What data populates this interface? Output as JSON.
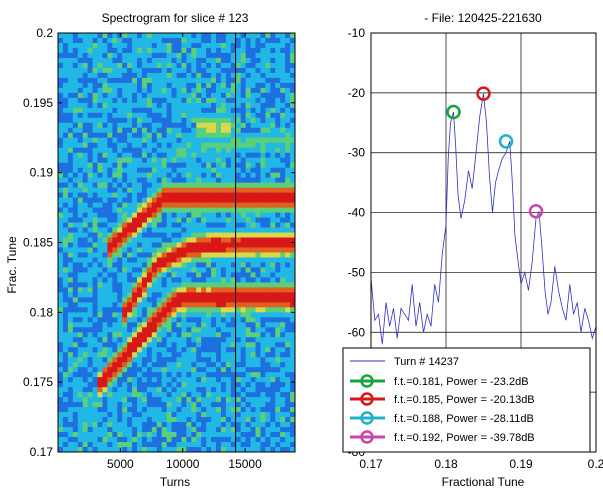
{
  "chart_data": [
    {
      "type": "heatmap",
      "title": "Spectrogram for slice # 123",
      "xlabel": "Turns",
      "ylabel": "Frac. Tune",
      "xlim": [
        0,
        19000
      ],
      "ylim": [
        0.17,
        0.2
      ],
      "x_ticks": [
        5000,
        10000,
        15000
      ],
      "y_ticks": [
        0.17,
        0.175,
        0.18,
        0.185,
        0.19,
        0.195,
        0.2
      ],
      "x_tick_labels": [
        "5000",
        "10000",
        "15000"
      ],
      "y_tick_labels": [
        "0.17",
        "0.175",
        "0.18",
        "0.185",
        "0.19",
        "0.195",
        "0.2"
      ],
      "cursor_turn": 14237,
      "colormap": [
        "#1a2fb5",
        "#1e6fe0",
        "#22b8e6",
        "#5ad07a",
        "#d8d84a",
        "#e06020",
        "#d81818"
      ],
      "ridges": [
        {
          "points": [
            [
              3000,
              0.1745
            ],
            [
              7000,
              0.1785
            ],
            [
              9000,
              0.1805
            ],
            [
              10000,
              0.181
            ],
            [
              19000,
              0.181
            ]
          ],
          "intensity": 1.0
        },
        {
          "points": [
            [
              5000,
              0.1795
            ],
            [
              8000,
              0.1835
            ],
            [
              10500,
              0.1845
            ],
            [
              12000,
              0.1848
            ],
            [
              19000,
              0.1849
            ]
          ],
          "intensity": 0.95
        },
        {
          "points": [
            [
              4000,
              0.1845
            ],
            [
              7000,
              0.187
            ],
            [
              8500,
              0.1882
            ],
            [
              19000,
              0.1882
            ]
          ],
          "intensity": 0.97
        },
        {
          "points": [
            [
              9000,
              0.1915
            ],
            [
              19000,
              0.1925
            ]
          ],
          "intensity": 0.45
        },
        {
          "points": [
            [
              11000,
              0.1933
            ],
            [
              14000,
              0.1932
            ]
          ],
          "intensity": 0.6
        }
      ]
    },
    {
      "type": "line",
      "title": "- File: 120425-221630",
      "xlabel": "Fractional Tune",
      "ylabel": "",
      "xlim": [
        0.17,
        0.2
      ],
      "ylim": [
        -80,
        -10
      ],
      "x_ticks": [
        0.17,
        0.18,
        0.19,
        0.2
      ],
      "y_ticks": [
        -80,
        -70,
        -60,
        -50,
        -40,
        -30,
        -20,
        -10
      ],
      "x_tick_labels": [
        "0.17",
        "0.18",
        "0.19",
        "0.2"
      ],
      "y_tick_labels": [
        "-80",
        "-70",
        "-60",
        "-50",
        "-40",
        "-30",
        "-20",
        "-10"
      ],
      "grid": true,
      "legend_position": "bottom",
      "series": [
        {
          "name": "Turn # 14237",
          "color": "#3030c0",
          "x": [
            0.17,
            0.1705,
            0.171,
            0.1715,
            0.172,
            0.1725,
            0.173,
            0.1735,
            0.174,
            0.1745,
            0.175,
            0.1755,
            0.176,
            0.1765,
            0.177,
            0.1775,
            0.178,
            0.1785,
            0.179,
            0.1795,
            0.18,
            0.1803,
            0.1806,
            0.181,
            0.1813,
            0.1816,
            0.182,
            0.1825,
            0.183,
            0.1835,
            0.184,
            0.1845,
            0.185,
            0.1854,
            0.1858,
            0.1862,
            0.1866,
            0.187,
            0.1875,
            0.188,
            0.1885,
            0.1888,
            0.1892,
            0.1896,
            0.19,
            0.1905,
            0.191,
            0.1915,
            0.192,
            0.1924,
            0.1928,
            0.1932,
            0.1936,
            0.194,
            0.1945,
            0.195,
            0.1955,
            0.196,
            0.1965,
            0.197,
            0.1975,
            0.198,
            0.1985,
            0.199,
            0.1995,
            0.2
          ],
          "values": [
            -51,
            -58,
            -57,
            -62,
            -55,
            -59,
            -56,
            -61,
            -56,
            -57,
            -58,
            -52,
            -59,
            -55,
            -60,
            -57,
            -59,
            -52,
            -55,
            -47,
            -42,
            -31,
            -25,
            -23.2,
            -29,
            -37,
            -41,
            -38,
            -33,
            -36,
            -30,
            -24,
            -20.1,
            -25,
            -34,
            -40,
            -35,
            -33,
            -31,
            -30,
            -28.1,
            -34,
            -44,
            -48,
            -52,
            -50,
            -53,
            -48,
            -41,
            -39.8,
            -46,
            -53,
            -57,
            -55,
            -49,
            -53,
            -56,
            -58,
            -52,
            -57,
            -55,
            -60,
            -56,
            -58,
            -61,
            -59
          ]
        }
      ],
      "markers": [
        {
          "name": "f.t.=0.181, Power = -23.2dB",
          "x": 0.181,
          "y": -23.2,
          "color": "#17a43a"
        },
        {
          "name": "f.t.=0.185, Power = -20.13dB",
          "x": 0.185,
          "y": -20.13,
          "color": "#d81818"
        },
        {
          "name": "f.t.=0.188, Power = -28.11dB",
          "x": 0.188,
          "y": -28.11,
          "color": "#22b0c8"
        },
        {
          "name": "f.t.=0.192, Power = -39.78dB",
          "x": 0.192,
          "y": -39.78,
          "color": "#cc44aa"
        }
      ]
    }
  ]
}
